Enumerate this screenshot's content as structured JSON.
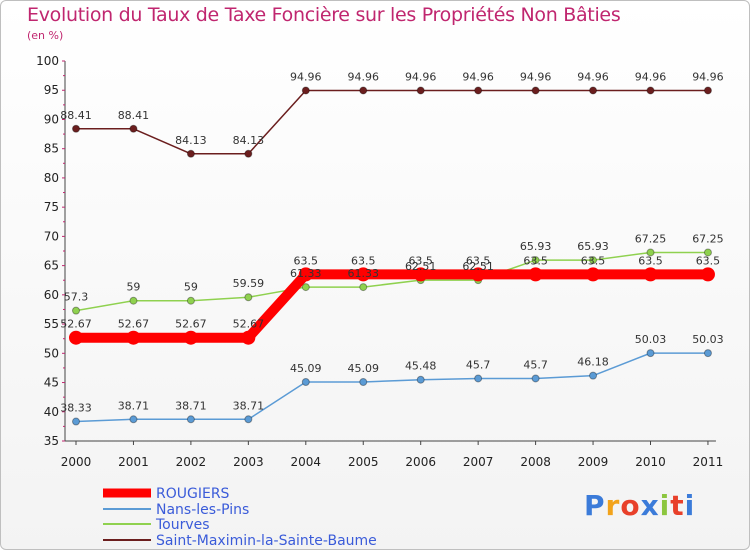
{
  "chart_data": {
    "type": "line",
    "title": "Evolution du Taux de Taxe Foncière sur les Propriétés Non Bâties",
    "ylabel": "(en %)",
    "xlabel": "",
    "x": [
      "2000",
      "2001",
      "2002",
      "2003",
      "2004",
      "2005",
      "2006",
      "2007",
      "2008",
      "2009",
      "2010",
      "2011"
    ],
    "ylim": [
      35,
      100
    ],
    "yticks": [
      35,
      40,
      45,
      50,
      55,
      60,
      65,
      70,
      75,
      80,
      85,
      90,
      95,
      100
    ],
    "grid": false,
    "legend_position": "bottom-left",
    "series": [
      {
        "name": "ROUGIERS",
        "color": "#ff0000",
        "values": [
          52.67,
          52.67,
          52.67,
          52.67,
          63.5,
          63.5,
          63.5,
          63.5,
          63.5,
          63.5,
          63.5,
          63.5
        ],
        "labels": [
          "52.67",
          "52.67",
          "52.67",
          "52.67",
          "63.5",
          "63.5",
          "63.5",
          "63.5",
          "63.5",
          "63.5",
          "63.5",
          "63.5"
        ]
      },
      {
        "name": "Nans-les-Pins",
        "color": "#5b9bd5",
        "values": [
          38.33,
          38.71,
          38.71,
          38.71,
          45.09,
          45.09,
          45.48,
          45.7,
          45.7,
          46.18,
          50.03,
          50.03
        ],
        "labels": [
          "38.33",
          "38.71",
          "38.71",
          "38.71",
          "45.09",
          "45.09",
          "45.48",
          "45.7",
          "45.7",
          "46.18",
          "50.03",
          "50.03"
        ]
      },
      {
        "name": "Tourves",
        "color": "#8fd14f",
        "values": [
          57.3,
          59,
          59,
          59.59,
          61.33,
          61.33,
          62.51,
          62.51,
          65.93,
          65.93,
          67.25,
          67.25
        ],
        "labels": [
          "57.3",
          "59",
          "59",
          "59.59",
          "61.33",
          "61.33",
          "62.51",
          "62.51",
          "65.93",
          "65.93",
          "67.25",
          "67.25"
        ]
      },
      {
        "name": "Saint-Maximin-la-Sainte-Baume",
        "color": "#6b1e1e",
        "values": [
          88.41,
          88.41,
          84.13,
          84.13,
          94.96,
          94.96,
          94.96,
          94.96,
          94.96,
          94.96,
          94.96,
          94.96
        ],
        "labels": [
          "88.41",
          "88.41",
          "84.13",
          "84.13",
          "94.96",
          "94.96",
          "94.96",
          "94.96",
          "94.96",
          "94.96",
          "94.96",
          "94.96"
        ]
      }
    ]
  },
  "branding": {
    "logo_text": "Proxiti",
    "logo_colors": [
      "#3b7bd9",
      "#f2a31b",
      "#e8402a",
      "#3b7bd9",
      "#8cc63f",
      "#e8402a",
      "#3b7bd9"
    ]
  }
}
